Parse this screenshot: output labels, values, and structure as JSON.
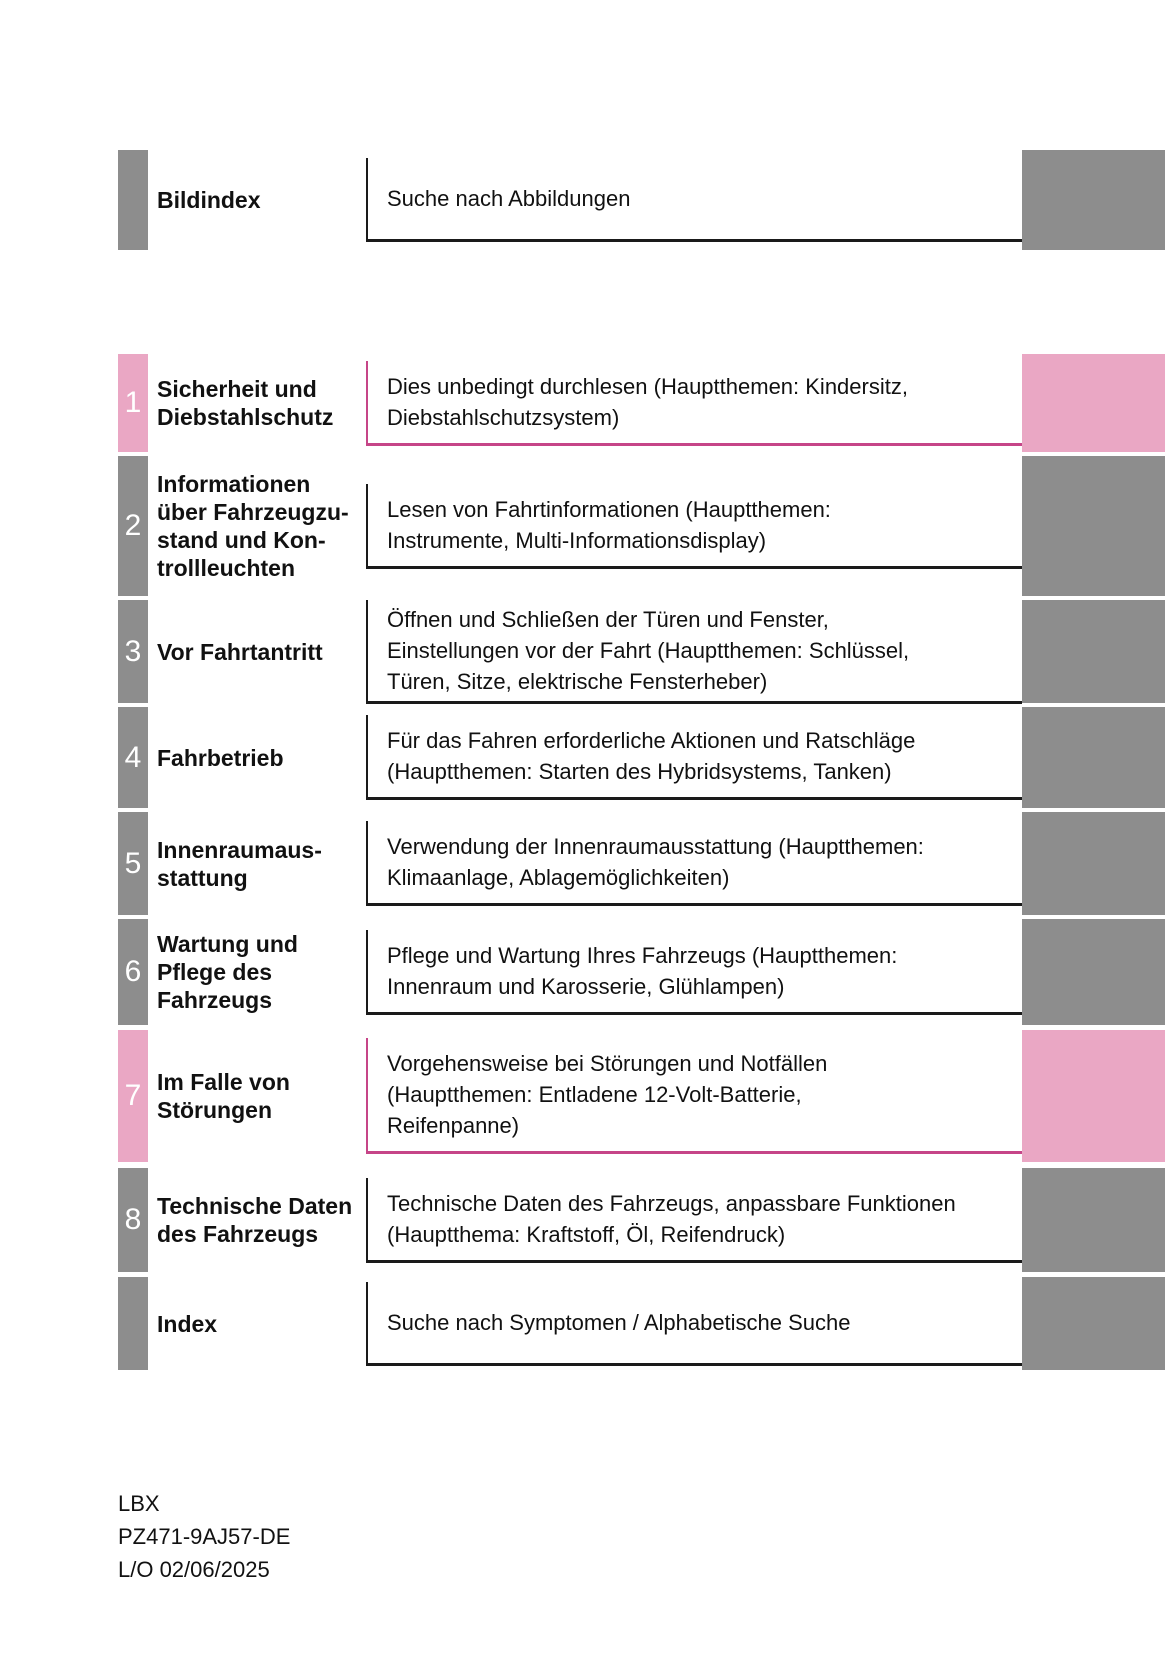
{
  "colors": {
    "block_gray": "#8d8d8d",
    "block_pink": "#eaa7c4",
    "pink_border": "#c64588",
    "dark_border": "#1a1a1a"
  },
  "rows": [
    {
      "num": "",
      "accent": "gray",
      "title": "Bildindex",
      "desc": "Suche nach Abbildungen"
    },
    {
      "num": "1",
      "accent": "pink",
      "title": "Sicherheit und\nDiebstahlschutz",
      "desc": "Dies unbedingt durchlesen (Hauptthemen: Kindersitz,\nDiebstahlschutzsystem)"
    },
    {
      "num": "2",
      "accent": "gray",
      "title": "Informationen\nüber Fahrzeugzu-\nstand und Kon-\ntrollleuchten",
      "desc": "Lesen von Fahrtinformationen (Hauptthemen:\nInstrumente, Multi-Informationsdisplay)"
    },
    {
      "num": "3",
      "accent": "gray",
      "title": "Vor Fahrtantritt",
      "desc": "Öffnen und Schließen der Türen und Fenster,\nEinstellungen vor der Fahrt (Hauptthemen: Schlüssel,\nTüren, Sitze, elektrische Fensterheber)"
    },
    {
      "num": "4",
      "accent": "gray",
      "title": "Fahrbetrieb",
      "desc": "Für das Fahren erforderliche Aktionen und Ratschläge\n(Hauptthemen: Starten des Hybridsystems, Tanken)"
    },
    {
      "num": "5",
      "accent": "gray",
      "title": "Innenraumaus-\nstattung",
      "desc": "Verwendung der Innenraumausstattung (Hauptthemen:\nKlimaanlage, Ablagemöglichkeiten)"
    },
    {
      "num": "6",
      "accent": "gray",
      "title": "Wartung und\nPflege des\nFahrzeugs",
      "desc": "Pflege und Wartung Ihres Fahrzeugs (Hauptthemen:\nInnenraum und Karosserie, Glühlampen)"
    },
    {
      "num": "7",
      "accent": "pink",
      "title": "Im Falle von\nStörungen",
      "desc": "Vorgehensweise bei Störungen und Notfällen\n(Hauptthemen: Entladene 12-Volt-Batterie,\nReifenpanne)"
    },
    {
      "num": "8",
      "accent": "gray",
      "title": "Technische Daten\ndes Fahrzeugs",
      "desc": "Technische Daten des Fahrzeugs, anpassbare Funktionen\n(Hauptthema: Kraftstoff, Öl, Reifendruck)"
    },
    {
      "num": "",
      "accent": "gray",
      "title": "Index",
      "desc": "Suche nach Symptomen / Alphabetische Suche"
    }
  ],
  "footer": {
    "line1": "LBX",
    "line2": "PZ471-9AJ57-DE",
    "line3": "L/O 02/06/2025"
  }
}
